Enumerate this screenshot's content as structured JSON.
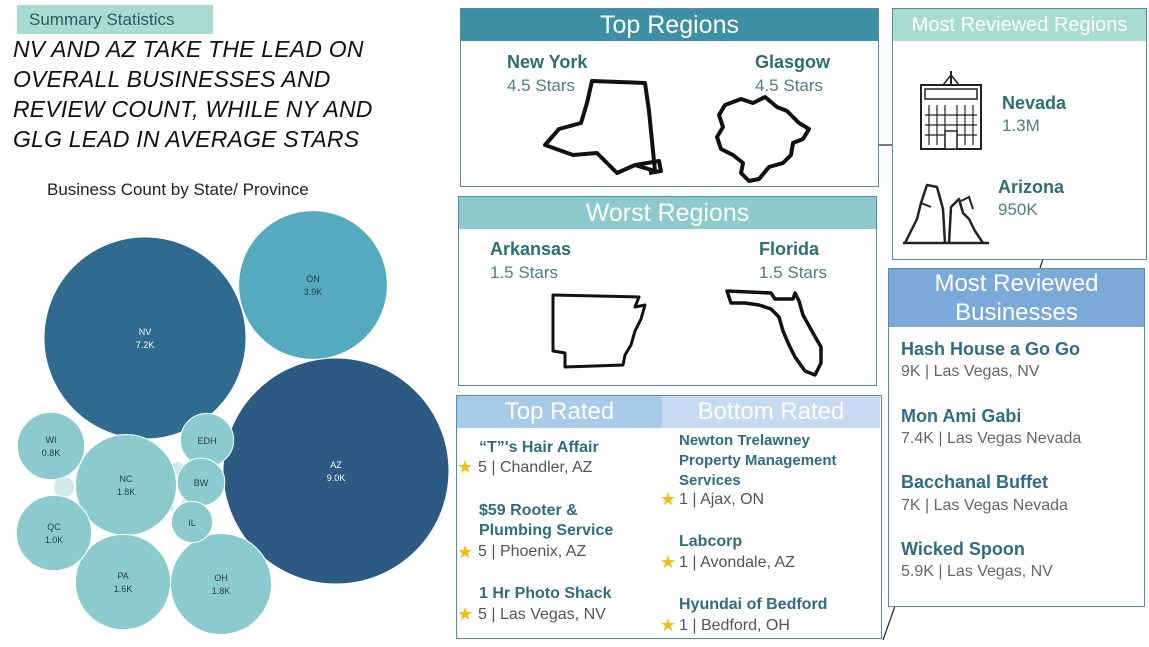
{
  "tag": "Summary Statistics",
  "headline": [
    "NV AND AZ TAKE THE LEAD ON",
    "OVERALL BUSINESSES AND",
    "REVIEW COUNT, WHILE NY AND",
    "GLG LEAD IN AVERAGE STARS"
  ],
  "colors": {
    "teal_title": "#3d8fa3",
    "light_teal": "#8ec9cb",
    "blue_title": "#7ba9d8",
    "dark_blue": "#2e5a84",
    "star": "#f0bf1a"
  },
  "chart_data": {
    "type": "bubble",
    "title": "Business Count by State/ Province",
    "bubbles": [
      {
        "label": "NV",
        "display": "7.2K",
        "value": 7200
      },
      {
        "label": "AZ",
        "display": "9.0K",
        "value": 9000
      },
      {
        "label": "ON",
        "display": "3.9K",
        "value": 3900
      },
      {
        "label": "NC",
        "display": "1.8K",
        "value": 1800
      },
      {
        "label": "OH",
        "display": "1.8K",
        "value": 1800
      },
      {
        "label": "PA",
        "display": "1.6K",
        "value": 1600
      },
      {
        "label": "QC",
        "display": "1.0K",
        "value": 1000
      },
      {
        "label": "WI",
        "display": "0.8K",
        "value": 800
      },
      {
        "label": "EDH",
        "display": "",
        "value": 500
      },
      {
        "label": "BW",
        "display": "",
        "value": 400
      },
      {
        "label": "IL",
        "display": "",
        "value": 300
      }
    ]
  },
  "top_regions": {
    "title": "Top Regions",
    "items": [
      {
        "name": "New York",
        "stars": "4.5 Stars",
        "icon": "new-york-outline-icon"
      },
      {
        "name": "Glasgow",
        "stars": "4.5 Stars",
        "icon": "glasgow-outline-icon"
      }
    ]
  },
  "worst_regions": {
    "title": "Worst Regions",
    "items": [
      {
        "name": "Arkansas",
        "stars": "1.5 Stars",
        "icon": "arkansas-outline-icon"
      },
      {
        "name": "Florida",
        "stars": "1.5 Stars",
        "icon": "florida-outline-icon"
      }
    ]
  },
  "most_reviewed_regions": {
    "title": "Most Reviewed Regions",
    "items": [
      {
        "name": "Nevada",
        "count": "1.3M",
        "icon": "casino-icon"
      },
      {
        "name": "Arizona",
        "count": "950K",
        "icon": "canyon-icon"
      }
    ]
  },
  "rated": {
    "top_title": "Top Rated",
    "bottom_title": "Bottom Rated",
    "top": [
      {
        "name": "“T”'s Hair Affair",
        "rating": "5",
        "location": " | Chandler, AZ"
      },
      {
        "name": "$59 Rooter & Plumbing Service",
        "rating": "5",
        "location": " | Phoenix, AZ"
      },
      {
        "name": "1 Hr Photo Shack",
        "rating": "5",
        "location": " | Las Vegas, NV"
      }
    ],
    "bottom": [
      {
        "name": "Newton Trelawney Property Management Services",
        "rating": "1",
        "location": " | Ajax, ON"
      },
      {
        "name": "Labcorp",
        "rating": "1",
        "location": " | Avondale, AZ"
      },
      {
        "name": "Hyundai of Bedford",
        "rating": "1",
        "location": " | Bedford, OH"
      }
    ]
  },
  "most_reviewed_businesses": {
    "title": "Most Reviewed Businesses",
    "items": [
      {
        "name": "Hash House a Go Go",
        "detail": "9K | Las Vegas, NV"
      },
      {
        "name": "Mon Ami Gabi",
        "detail": "7.4K | Las Vegas Nevada"
      },
      {
        "name": "Bacchanal Buffet",
        "detail": "7K | Las Vegas Nevada"
      },
      {
        "name": "Wicked Spoon",
        "detail": "5.9K | Las Vegas, NV"
      }
    ]
  }
}
